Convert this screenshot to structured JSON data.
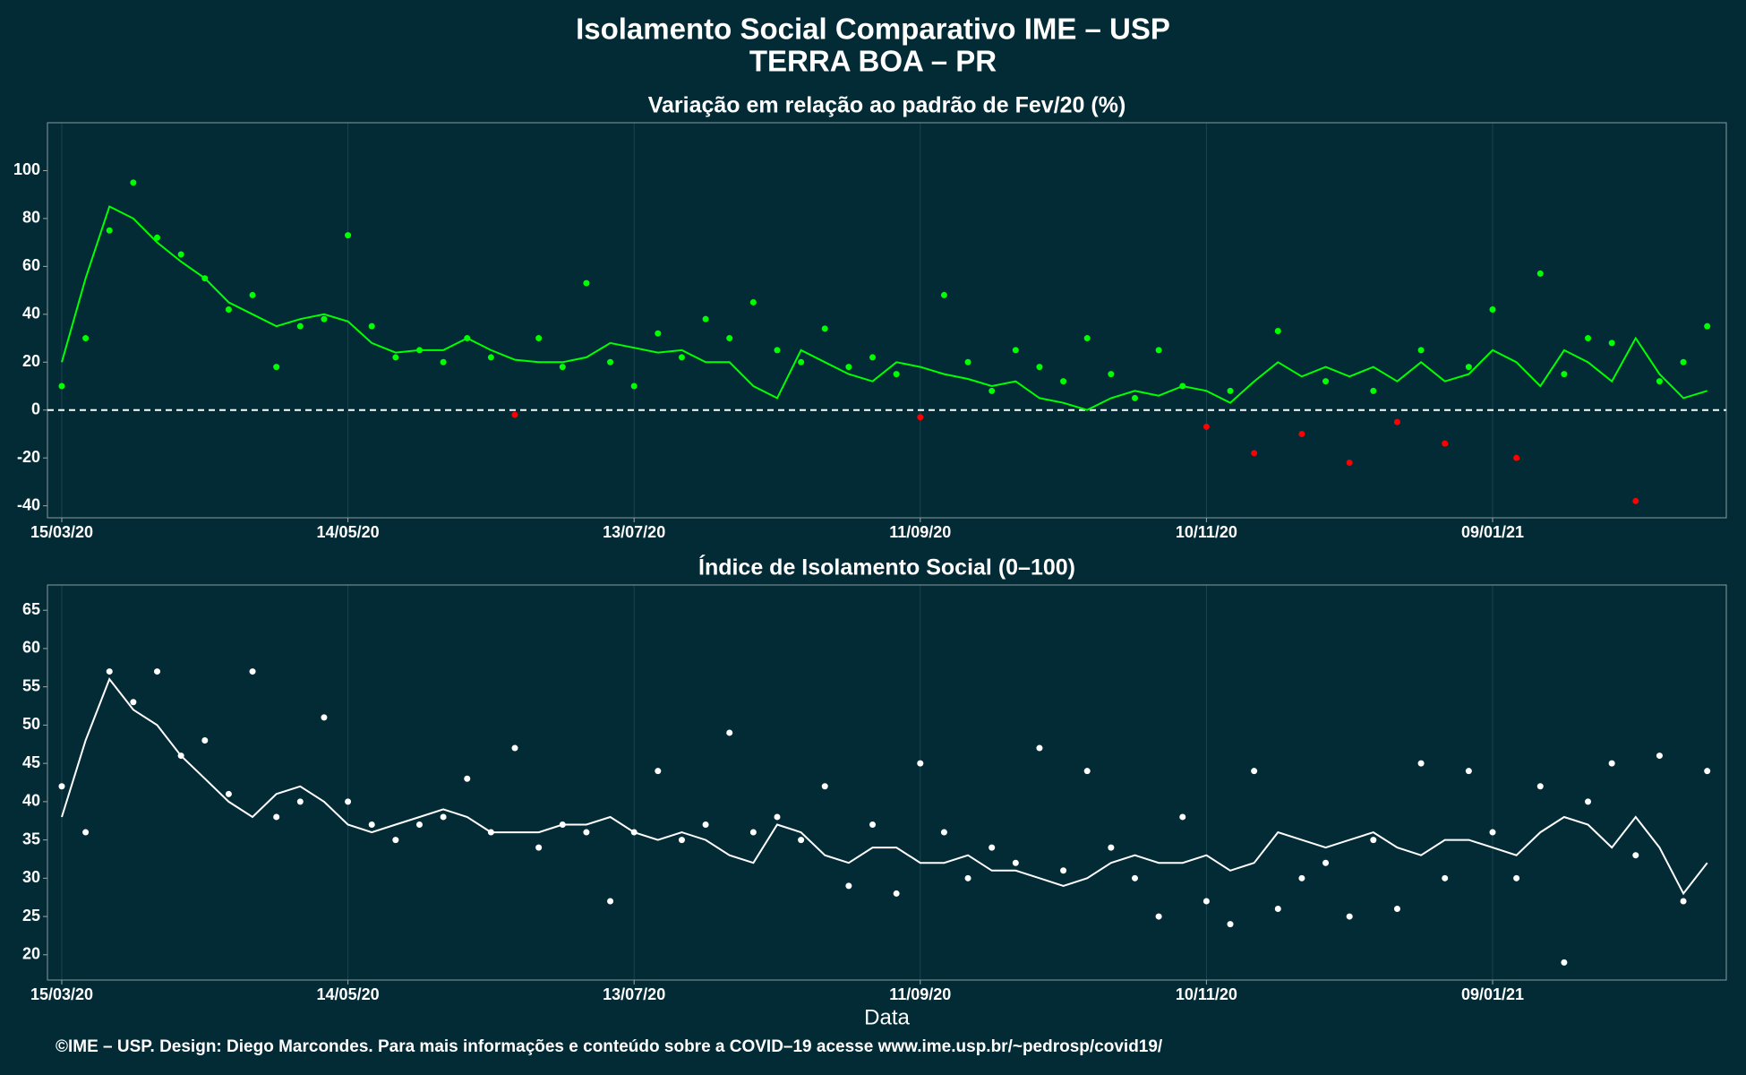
{
  "title": "Isolamento Social Comparativo IME – USP",
  "subtitle": "TERRA BOA – PR",
  "footer": "©IME – USP. Design: Diego Marcondes. Para mais informações e conteúdo sobre a COVID–19 acesse www.ime.usp.br/~pedrosp/covid19/",
  "chart_data": [
    {
      "type": "scatter",
      "title": "Variação em relação ao padrão de Fev/20 (%)",
      "x": [
        "2020-03-15",
        "2020-03-20",
        "2020-03-25",
        "2020-03-30",
        "2020-04-04",
        "2020-04-09",
        "2020-04-14",
        "2020-04-19",
        "2020-04-24",
        "2020-04-29",
        "2020-05-04",
        "2020-05-09",
        "2020-05-14",
        "2020-05-19",
        "2020-05-24",
        "2020-05-29",
        "2020-06-03",
        "2020-06-08",
        "2020-06-13",
        "2020-06-18",
        "2020-06-23",
        "2020-06-28",
        "2020-07-03",
        "2020-07-08",
        "2020-07-13",
        "2020-07-18",
        "2020-07-23",
        "2020-07-28",
        "2020-08-02",
        "2020-08-07",
        "2020-08-12",
        "2020-08-17",
        "2020-08-22",
        "2020-08-27",
        "2020-09-01",
        "2020-09-06",
        "2020-09-11",
        "2020-09-16",
        "2020-09-21",
        "2020-09-26",
        "2020-10-01",
        "2020-10-06",
        "2020-10-11",
        "2020-10-16",
        "2020-10-21",
        "2020-10-26",
        "2020-10-31",
        "2020-11-05",
        "2020-11-10",
        "2020-11-15",
        "2020-11-20",
        "2020-11-25",
        "2020-11-30",
        "2020-12-05",
        "2020-12-10",
        "2020-12-15",
        "2020-12-20",
        "2020-12-25",
        "2020-12-30",
        "2021-01-04",
        "2021-01-09",
        "2021-01-14",
        "2021-01-19",
        "2021-01-24",
        "2021-01-29",
        "2021-02-03",
        "2021-02-08",
        "2021-02-13",
        "2021-02-18",
        "2021-02-23"
      ],
      "series": [
        {
          "style": "points",
          "color": "#00ff00",
          "negative_color": "#ff0000",
          "values": [
            10,
            30,
            75,
            95,
            72,
            65,
            55,
            42,
            48,
            18,
            35,
            38,
            73,
            35,
            22,
            25,
            20,
            30,
            22,
            -2,
            30,
            18,
            53,
            20,
            10,
            32,
            22,
            38,
            30,
            45,
            25,
            20,
            34,
            18,
            22,
            15,
            -3,
            48,
            20,
            8,
            25,
            18,
            12,
            30,
            15,
            5,
            25,
            10,
            -7,
            8,
            -18,
            33,
            -10,
            12,
            -22,
            8,
            -5,
            25,
            -14,
            18,
            42,
            -20,
            57,
            15,
            30,
            28,
            -38,
            12,
            20,
            35
          ]
        },
        {
          "style": "line",
          "color": "#00ff00",
          "values": [
            20,
            55,
            85,
            80,
            70,
            62,
            55,
            45,
            40,
            35,
            38,
            40,
            37,
            28,
            24,
            25,
            25,
            30,
            25,
            21,
            20,
            20,
            22,
            28,
            26,
            24,
            25,
            20,
            20,
            10,
            5,
            25,
            20,
            15,
            12,
            20,
            18,
            15,
            13,
            10,
            12,
            5,
            3,
            0,
            5,
            8,
            6,
            10,
            8,
            3,
            12,
            20,
            14,
            18,
            14,
            18,
            12,
            20,
            12,
            15,
            25,
            20,
            10,
            25,
            20,
            12,
            30,
            15,
            5,
            8
          ]
        }
      ],
      "xlim": [
        "2020-03-12",
        "2021-02-27"
      ],
      "xticks": [
        {
          "value": "2020-03-15",
          "label": "15/03/20"
        },
        {
          "value": "2020-05-14",
          "label": "14/05/20"
        },
        {
          "value": "2020-07-13",
          "label": "13/07/20"
        },
        {
          "value": "2020-09-11",
          "label": "11/09/20"
        },
        {
          "value": "2020-11-10",
          "label": "10/11/20"
        },
        {
          "value": "2021-01-09",
          "label": "09/01/21"
        }
      ],
      "ylim": [
        -45,
        120
      ],
      "yticks": [
        -40,
        -20,
        0,
        20,
        40,
        60,
        80,
        100
      ],
      "hline": 0,
      "grid": true
    },
    {
      "type": "scatter",
      "title": "Índice de Isolamento Social (0–100)",
      "xlabel": "Data",
      "x": [
        "2020-03-15",
        "2020-03-20",
        "2020-03-25",
        "2020-03-30",
        "2020-04-04",
        "2020-04-09",
        "2020-04-14",
        "2020-04-19",
        "2020-04-24",
        "2020-04-29",
        "2020-05-04",
        "2020-05-09",
        "2020-05-14",
        "2020-05-19",
        "2020-05-24",
        "2020-05-29",
        "2020-06-03",
        "2020-06-08",
        "2020-06-13",
        "2020-06-18",
        "2020-06-23",
        "2020-06-28",
        "2020-07-03",
        "2020-07-08",
        "2020-07-13",
        "2020-07-18",
        "2020-07-23",
        "2020-07-28",
        "2020-08-02",
        "2020-08-07",
        "2020-08-12",
        "2020-08-17",
        "2020-08-22",
        "2020-08-27",
        "2020-09-01",
        "2020-09-06",
        "2020-09-11",
        "2020-09-16",
        "2020-09-21",
        "2020-09-26",
        "2020-10-01",
        "2020-10-06",
        "2020-10-11",
        "2020-10-16",
        "2020-10-21",
        "2020-10-26",
        "2020-10-31",
        "2020-11-05",
        "2020-11-10",
        "2020-11-15",
        "2020-11-20",
        "2020-11-25",
        "2020-11-30",
        "2020-12-05",
        "2020-12-10",
        "2020-12-15",
        "2020-12-20",
        "2020-12-25",
        "2020-12-30",
        "2021-01-04",
        "2021-01-09",
        "2021-01-14",
        "2021-01-19",
        "2021-01-24",
        "2021-01-29",
        "2021-02-03",
        "2021-02-08",
        "2021-02-13",
        "2021-02-18",
        "2021-02-23"
      ],
      "series": [
        {
          "style": "points",
          "color": "#ffffff",
          "values": [
            42,
            36,
            57,
            53,
            57,
            46,
            48,
            41,
            57,
            38,
            40,
            51,
            40,
            37,
            35,
            37,
            38,
            43,
            36,
            47,
            34,
            37,
            36,
            27,
            36,
            44,
            35,
            37,
            49,
            36,
            38,
            35,
            42,
            29,
            37,
            28,
            45,
            36,
            30,
            34,
            32,
            47,
            31,
            44,
            34,
            30,
            25,
            38,
            27,
            24,
            44,
            26,
            30,
            32,
            25,
            35,
            26,
            45,
            30,
            44,
            36,
            30,
            42,
            19,
            40,
            45,
            33,
            46,
            27,
            44
          ]
        },
        {
          "style": "line",
          "color": "#ffffff",
          "values": [
            38,
            48,
            56,
            52,
            50,
            46,
            43,
            40,
            38,
            41,
            42,
            40,
            37,
            36,
            37,
            38,
            39,
            38,
            36,
            36,
            36,
            37,
            37,
            38,
            36,
            35,
            36,
            35,
            33,
            32,
            37,
            36,
            33,
            32,
            34,
            34,
            32,
            32,
            33,
            31,
            31,
            30,
            29,
            30,
            32,
            33,
            32,
            32,
            33,
            31,
            32,
            36,
            35,
            34,
            35,
            36,
            34,
            33,
            35,
            35,
            34,
            33,
            36,
            38,
            37,
            34,
            38,
            34,
            28,
            32
          ]
        }
      ],
      "xlim": [
        "2020-03-12",
        "2021-02-27"
      ],
      "xticks": [
        {
          "value": "2020-03-15",
          "label": "15/03/20"
        },
        {
          "value": "2020-05-14",
          "label": "14/05/20"
        },
        {
          "value": "2020-07-13",
          "label": "13/07/20"
        },
        {
          "value": "2020-09-11",
          "label": "11/09/20"
        },
        {
          "value": "2020-11-10",
          "label": "10/11/20"
        },
        {
          "value": "2021-01-09",
          "label": "09/01/21"
        }
      ],
      "ylim": [
        16.7,
        68.3
      ],
      "yticks": [
        20,
        25,
        30,
        35,
        40,
        45,
        50,
        55,
        60,
        65
      ],
      "grid": true
    }
  ]
}
